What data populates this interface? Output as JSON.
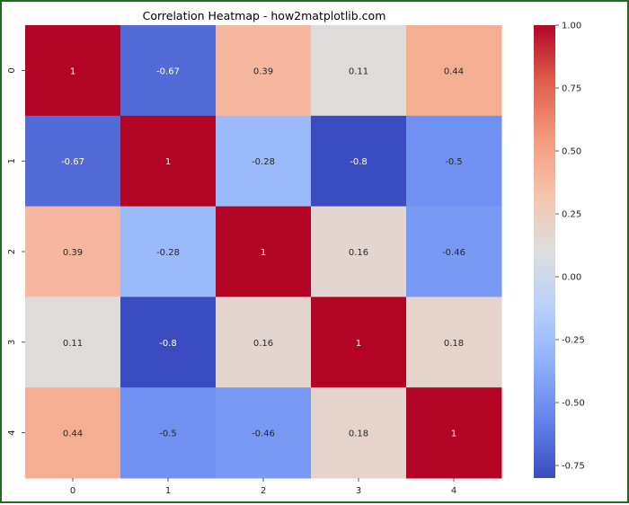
{
  "chart_data": {
    "type": "heatmap",
    "title": "Correlation Heatmap - how2matplotlib.com",
    "x_categories": [
      "0",
      "1",
      "2",
      "3",
      "4"
    ],
    "y_categories": [
      "0",
      "1",
      "2",
      "3",
      "4"
    ],
    "values": [
      [
        1,
        -0.67,
        0.39,
        0.11,
        0.44
      ],
      [
        -0.67,
        1,
        -0.28,
        -0.8,
        -0.5
      ],
      [
        0.39,
        -0.28,
        1,
        0.16,
        -0.46
      ],
      [
        0.11,
        -0.8,
        0.16,
        1,
        0.18
      ],
      [
        0.44,
        -0.5,
        -0.46,
        0.18,
        1
      ]
    ],
    "cell_labels": [
      [
        "1",
        "-0.67",
        "0.39",
        "0.11",
        "0.44"
      ],
      [
        "-0.67",
        "1",
        "-0.28",
        "-0.8",
        "-0.5"
      ],
      [
        "0.39",
        "-0.28",
        "1",
        "0.16",
        "-0.46"
      ],
      [
        "0.11",
        "-0.8",
        "0.16",
        "1",
        "0.18"
      ],
      [
        "0.44",
        "-0.5",
        "-0.46",
        "0.18",
        "1"
      ]
    ],
    "colormap": "coolwarm",
    "color_range": [
      -0.8,
      1.0
    ],
    "colorbar_ticks": [
      "1.00",
      "0.75",
      "0.50",
      "0.25",
      "0.00",
      "-0.25",
      "-0.50",
      "-0.75"
    ],
    "colorbar_tick_values": [
      1.0,
      0.75,
      0.5,
      0.25,
      0.0,
      -0.25,
      -0.5,
      -0.75
    ],
    "grid": false
  }
}
